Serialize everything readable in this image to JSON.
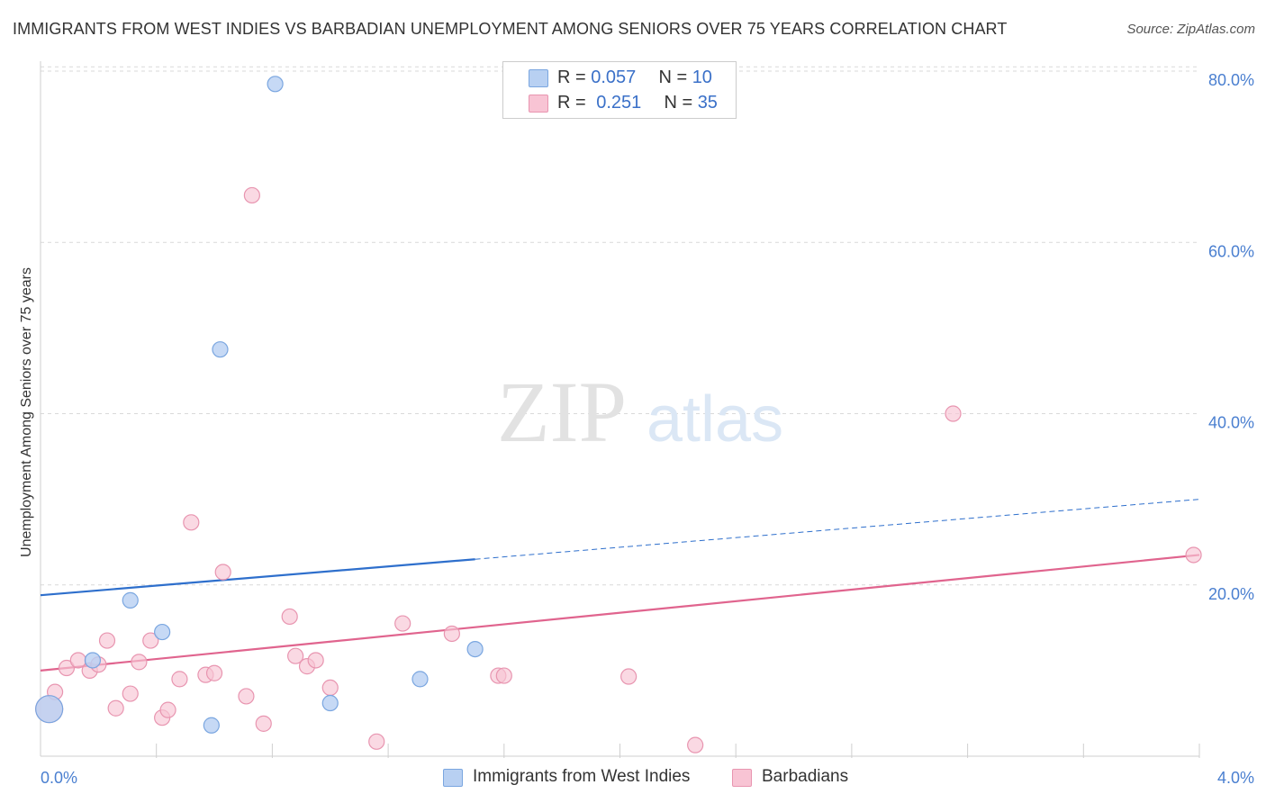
{
  "header": {
    "title": "IMMIGRANTS FROM WEST INDIES VS BARBADIAN UNEMPLOYMENT AMONG SENIORS OVER 75 YEARS CORRELATION CHART",
    "source": "Source: ZipAtlas.com"
  },
  "watermark": {
    "zip": "ZIP",
    "atlas": "atlas"
  },
  "legend_top": [
    {
      "r_label": "R = ",
      "r_value": "0.057",
      "n_label": "N = ",
      "n_value": "10"
    },
    {
      "r_label": "R = ",
      "r_value": "0.251",
      "n_label": "N = ",
      "n_value": "35"
    }
  ],
  "legend_bottom": [
    "Immigrants from West Indies",
    "Barbadians"
  ],
  "colors": {
    "blue_fill": "#b8d0f2",
    "blue_stroke": "#7aa6e0",
    "blue_line": "#2e6fcc",
    "pink_fill": "#f8c4d4",
    "pink_stroke": "#e895b0",
    "pink_line": "#e0648e",
    "grid": "#d9d9d9",
    "tick_text": "#4a7fd0"
  },
  "chart_data": {
    "type": "scatter",
    "title": "IMMIGRANTS FROM WEST INDIES VS BARBADIAN UNEMPLOYMENT AMONG SENIORS OVER 75 YEARS CORRELATION CHART",
    "xlabel": "",
    "ylabel": "Unemployment Among Seniors over 75 years",
    "xlim": [
      0,
      4.0
    ],
    "ylim": [
      0,
      82
    ],
    "x_tick_labels": [
      "0.0%",
      "4.0%"
    ],
    "y_ticks": [
      20,
      40,
      60,
      80
    ],
    "y_tick_labels": [
      "20.0%",
      "40.0%",
      "60.0%",
      "80.0%"
    ],
    "grid": true,
    "series": [
      {
        "name": "Immigrants from West Indies",
        "r": 0.057,
        "n": 10,
        "points": [
          [
            0.03,
            5.5
          ],
          [
            0.18,
            11.2
          ],
          [
            0.31,
            18.2
          ],
          [
            0.42,
            14.5
          ],
          [
            0.59,
            3.6
          ],
          [
            0.62,
            47.5
          ],
          [
            0.81,
            78.5
          ],
          [
            1.0,
            6.2
          ],
          [
            1.31,
            9.0
          ],
          [
            1.5,
            12.5
          ]
        ],
        "trend": {
          "x0": 0.0,
          "y0": 18.8,
          "x1": 1.5,
          "y1": 23.0,
          "dashed_to_x": 4.0,
          "dashed_to_y": 30.0
        }
      },
      {
        "name": "Barbadians",
        "r": 0.251,
        "n": 35,
        "points": [
          [
            0.03,
            5.5
          ],
          [
            0.05,
            7.5
          ],
          [
            0.09,
            10.3
          ],
          [
            0.13,
            11.2
          ],
          [
            0.17,
            10.0
          ],
          [
            0.2,
            10.7
          ],
          [
            0.23,
            13.5
          ],
          [
            0.26,
            5.6
          ],
          [
            0.31,
            7.3
          ],
          [
            0.34,
            11.0
          ],
          [
            0.38,
            13.5
          ],
          [
            0.42,
            4.5
          ],
          [
            0.44,
            5.4
          ],
          [
            0.48,
            9.0
          ],
          [
            0.52,
            27.3
          ],
          [
            0.57,
            9.5
          ],
          [
            0.6,
            9.7
          ],
          [
            0.63,
            21.5
          ],
          [
            0.71,
            7.0
          ],
          [
            0.77,
            3.8
          ],
          [
            0.73,
            65.5
          ],
          [
            0.86,
            16.3
          ],
          [
            0.88,
            11.7
          ],
          [
            0.92,
            10.5
          ],
          [
            0.95,
            11.2
          ],
          [
            1.0,
            8.0
          ],
          [
            1.16,
            1.7
          ],
          [
            1.25,
            15.5
          ],
          [
            1.42,
            14.3
          ],
          [
            1.58,
            9.4
          ],
          [
            1.6,
            9.4
          ],
          [
            2.03,
            9.3
          ],
          [
            2.26,
            1.3
          ],
          [
            3.15,
            40.0
          ],
          [
            3.98,
            23.5
          ]
        ],
        "trend": {
          "x0": 0.0,
          "y0": 10.0,
          "x1": 4.0,
          "y1": 23.5
        }
      }
    ]
  }
}
